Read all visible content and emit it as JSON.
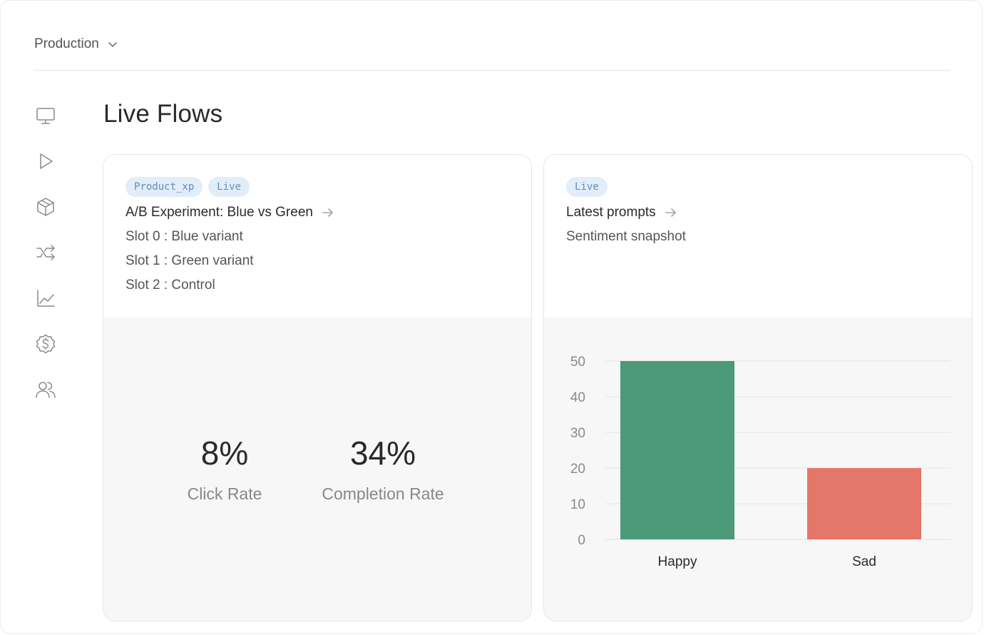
{
  "environment": {
    "selected": "Production",
    "icon": "chevron-down-icon"
  },
  "sidebar": {
    "items": [
      {
        "name": "monitor",
        "icon": "monitor-icon"
      },
      {
        "name": "play",
        "icon": "play-icon"
      },
      {
        "name": "box",
        "icon": "box-icon"
      },
      {
        "name": "flows",
        "icon": "shuffle-icon"
      },
      {
        "name": "analytics",
        "icon": "line-chart-icon"
      },
      {
        "name": "billing",
        "icon": "dollar-badge-icon"
      },
      {
        "name": "users",
        "icon": "users-icon"
      }
    ]
  },
  "page": {
    "title": "Live Flows"
  },
  "cards": [
    {
      "tags": [
        "Product_xp",
        "Live"
      ],
      "title": "A/B Experiment: Blue vs Green",
      "lines": [
        "Slot 0 : Blue variant",
        "Slot 1 : Green variant",
        "Slot 2 : Control"
      ],
      "metrics": [
        {
          "value": "8%",
          "label": "Click Rate"
        },
        {
          "value": "34%",
          "label": "Completion Rate"
        }
      ]
    },
    {
      "tags": [
        "Live"
      ],
      "title": "Latest prompts",
      "subtitle": "Sentiment snapshot"
    }
  ],
  "colors": {
    "happy": "#4c9a78",
    "sad": "#e5776a",
    "tag_bg": "#e2edf8",
    "tag_text": "#5b8dc5"
  },
  "chart_data": {
    "type": "bar",
    "categories": [
      "Happy",
      "Sad"
    ],
    "values": [
      50,
      20
    ],
    "colors": [
      "#4c9a78",
      "#e5776a"
    ],
    "ylim": [
      0,
      50
    ],
    "yticks": [
      0,
      10,
      20,
      30,
      40,
      50
    ],
    "grid": true,
    "title": "",
    "xlabel": "",
    "ylabel": ""
  }
}
